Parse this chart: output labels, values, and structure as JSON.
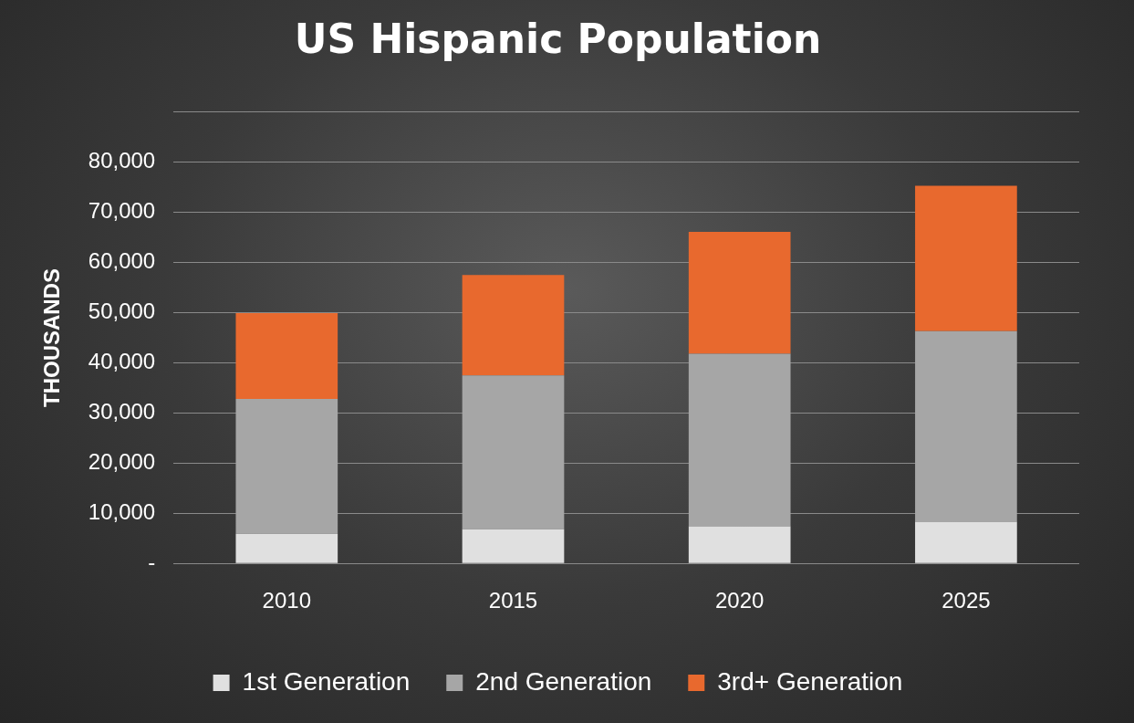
{
  "chart_data": {
    "type": "bar",
    "title": "US Hispanic Population",
    "ylabel": "THOUSANDS",
    "categories": [
      "2010",
      "2015",
      "2020",
      "2025"
    ],
    "stacked": true,
    "series": [
      {
        "name": "1st Generation",
        "color": "#e0e0e0",
        "values": [
          5900,
          6800,
          7400,
          8300
        ]
      },
      {
        "name": "2nd Generation",
        "color": "#a6a6a6",
        "values": [
          26900,
          30700,
          34400,
          38000
        ]
      },
      {
        "name": "3rd+ Generation",
        "color": "#e8692e",
        "values": [
          17100,
          20000,
          24300,
          29000
        ]
      }
    ],
    "ylim": [
      0,
      90000
    ],
    "yticks": [
      {
        "value": 0,
        "label": "-"
      },
      {
        "value": 10000,
        "label": "10,000"
      },
      {
        "value": 20000,
        "label": "20,000"
      },
      {
        "value": 30000,
        "label": "30,000"
      },
      {
        "value": 40000,
        "label": "40,000"
      },
      {
        "value": 50000,
        "label": "50,000"
      },
      {
        "value": 60000,
        "label": "60,000"
      },
      {
        "value": 70000,
        "label": "70,000"
      },
      {
        "value": 80000,
        "label": "80,000"
      },
      {
        "value": 90000,
        "label": null
      }
    ],
    "grid": "y",
    "legend": "bottom"
  }
}
